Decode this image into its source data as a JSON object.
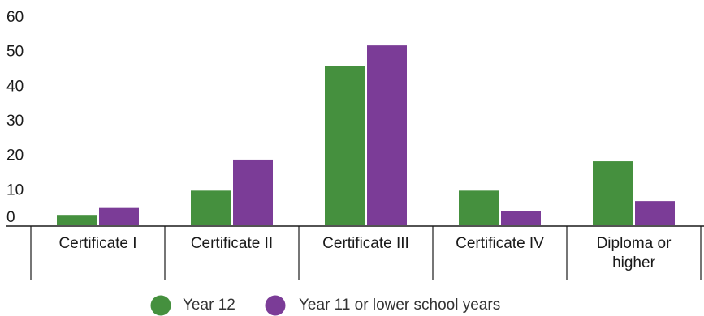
{
  "chart_data": {
    "type": "bar",
    "categories": [
      "Certificate I",
      "Certificate II",
      "Certificate III",
      "Certificate IV",
      "Diploma or higher"
    ],
    "category_lines": [
      [
        "Certificate I"
      ],
      [
        "Certificate II"
      ],
      [
        "Certificate III"
      ],
      [
        "Certificate IV"
      ],
      [
        "Diploma or",
        "higher"
      ]
    ],
    "series": [
      {
        "name": "Year 12",
        "values": [
          3,
          10,
          46,
          10,
          18.5
        ],
        "color": "#45903e"
      },
      {
        "name": "Year 11 or lower school years",
        "values": [
          5,
          19,
          52,
          4,
          7
        ],
        "color": "#7b3c97"
      }
    ],
    "yticks": [
      "0",
      "10",
      "20",
      "30",
      "40",
      "50",
      "60"
    ],
    "ylim": [
      0,
      60
    ],
    "grid": false,
    "legend_position": "bottom-center"
  }
}
